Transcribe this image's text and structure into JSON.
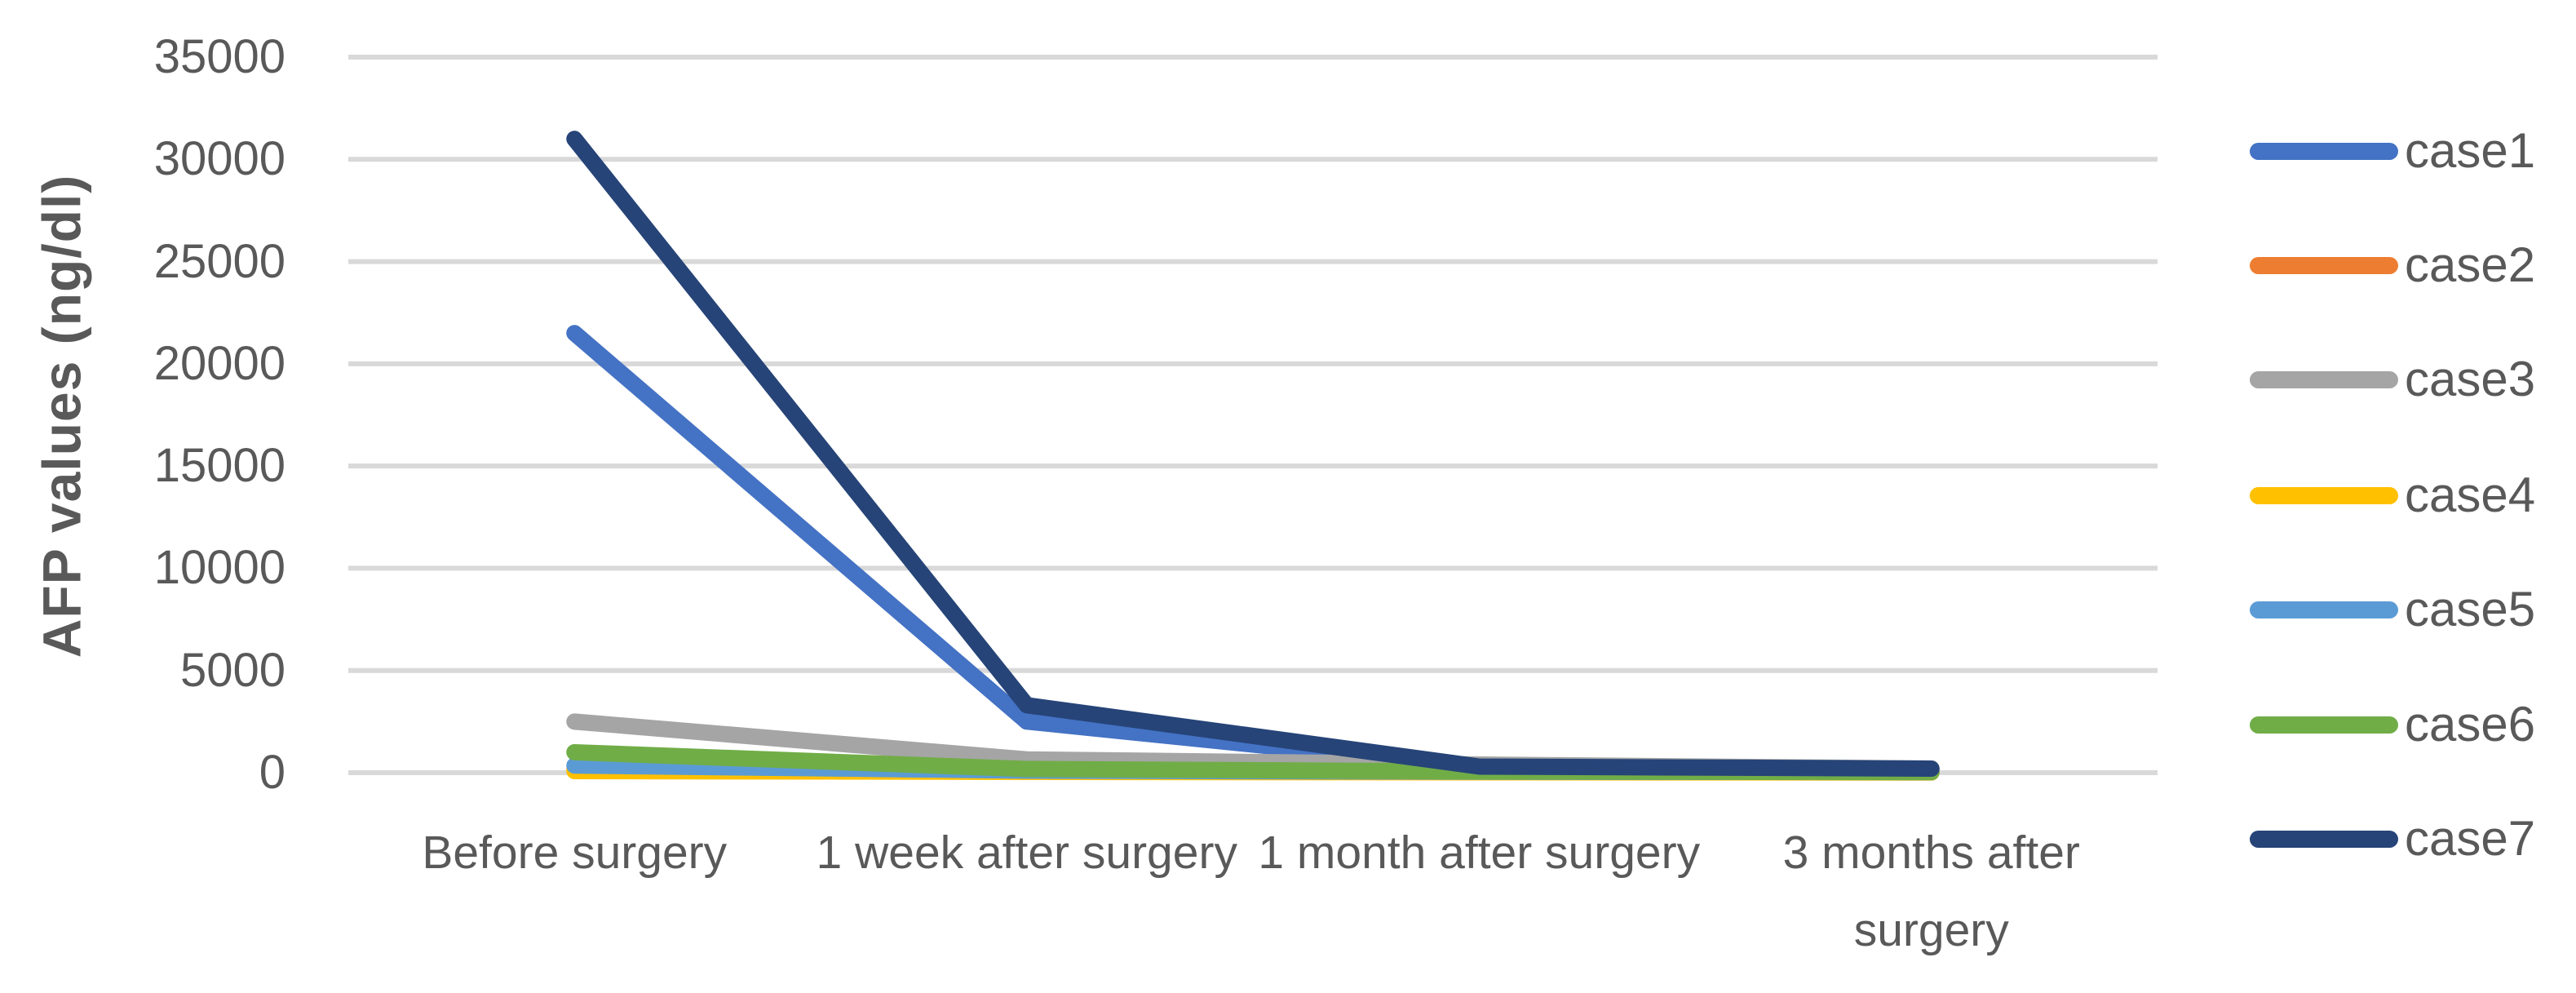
{
  "chart_data": {
    "type": "line",
    "title": "",
    "xlabel": "",
    "ylabel": "AFP values (ng/dl)",
    "ylim": [
      0,
      35000
    ],
    "ytick_step": 5000,
    "ytick_labels": [
      "35000",
      "30000",
      "25000",
      "20000",
      "15000",
      "10000",
      "5000",
      "0"
    ],
    "categories": [
      "Before surgery",
      "1 week after surgery",
      "1 month after surgery",
      "3 months after surgery"
    ],
    "series": [
      {
        "name": "case1",
        "color": "#4472C4",
        "values": [
          21500,
          2500,
          250,
          150
        ]
      },
      {
        "name": "case2",
        "color": "#ED7D31",
        "values": [
          150,
          70,
          40,
          20
        ]
      },
      {
        "name": "case3",
        "color": "#A5A5A5",
        "values": [
          2500,
          650,
          400,
          200
        ]
      },
      {
        "name": "case4",
        "color": "#FFC000",
        "values": [
          80,
          40,
          20,
          10
        ]
      },
      {
        "name": "case5",
        "color": "#5B9BD5",
        "values": [
          350,
          100,
          50,
          30
        ]
      },
      {
        "name": "case6",
        "color": "#70AD47",
        "values": [
          1000,
          180,
          60,
          30
        ]
      },
      {
        "name": "case7",
        "color": "#264478",
        "values": [
          31000,
          3300,
          300,
          200
        ]
      }
    ],
    "legend_position": "right",
    "grid": true,
    "gridline_color": "#D9D9D9",
    "text_color": "#595959",
    "background": "#FFFFFF"
  }
}
